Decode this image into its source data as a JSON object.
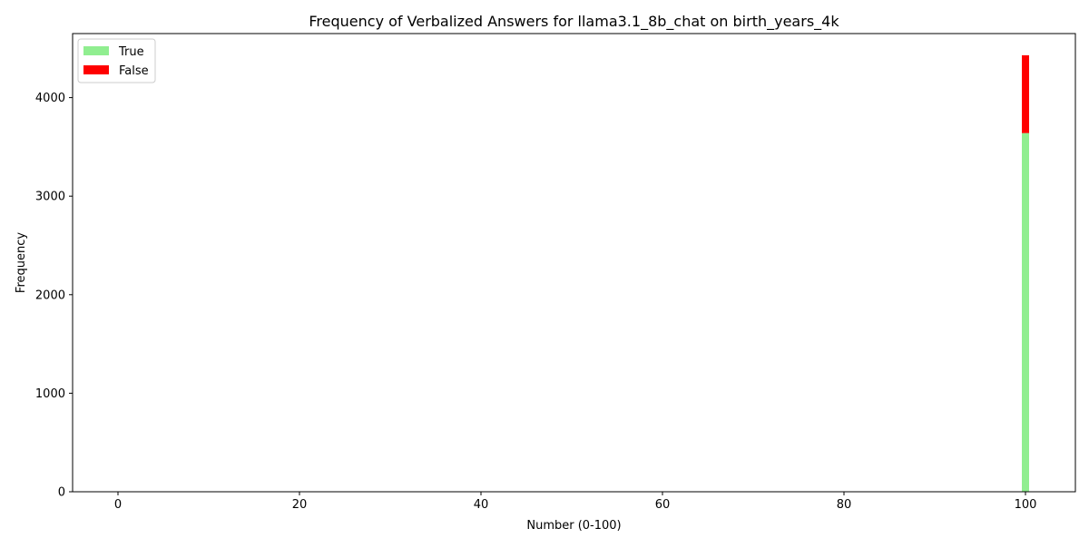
{
  "chart_data": {
    "type": "bar",
    "stacked": true,
    "title": "Frequency of Verbalized Answers for llama3.1_8b_chat on birth_years_4k",
    "xlabel": "Number (0-100)",
    "ylabel": "Frequency",
    "xlim": [
      -5,
      105.5
    ],
    "ylim": [
      0,
      4650
    ],
    "xticks": [
      0,
      20,
      40,
      60,
      80,
      100
    ],
    "yticks": [
      0,
      1000,
      2000,
      3000,
      4000
    ],
    "x": [
      0,
      100
    ],
    "series": [
      {
        "name": "True",
        "color": "#90ee90",
        "values": [
          0,
          3640
        ]
      },
      {
        "name": "False",
        "color": "#ff0000",
        "values": [
          4,
          790
        ]
      }
    ],
    "grid": false,
    "legend": "top-left"
  }
}
